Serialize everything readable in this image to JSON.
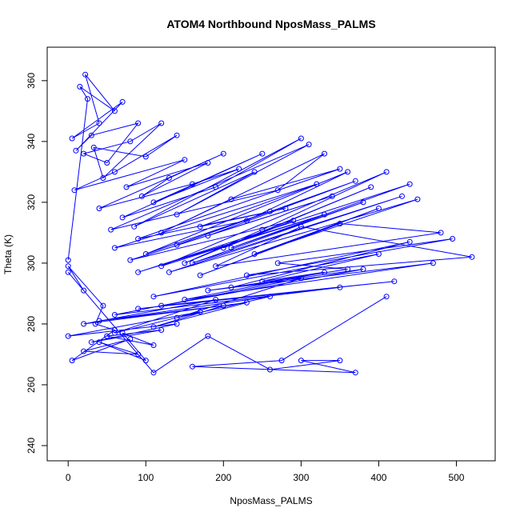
{
  "chart_data": {
    "type": "scatter",
    "title": "ATOM4 Northbound NposMass_PALMS",
    "xlabel": "NposMass_PALMS",
    "ylabel": "Theta (K)",
    "xlim": [
      -27,
      550
    ],
    "ylim": [
      235,
      371
    ],
    "xticks": [
      "0",
      "100",
      "200",
      "300",
      "400",
      "500"
    ],
    "yticks": [
      "240",
      "260",
      "280",
      "300",
      "320",
      "340",
      "360"
    ],
    "marker": "open-circle",
    "connected_lines": true,
    "grid": false,
    "colors": {
      "series": "#0000ff",
      "axes": "#000000"
    },
    "series": [
      {
        "x": [
          0,
          25,
          15,
          60,
          22,
          40,
          5,
          70,
          10,
          30,
          90,
          50,
          20,
          80,
          120,
          45,
          33,
          100,
          140,
          60,
          8,
          150,
          75,
          180,
          95,
          130,
          200,
          40,
          160,
          220,
          110,
          250,
          70,
          190,
          300,
          85,
          240,
          140,
          310,
          55,
          270,
          330,
          120,
          210,
          350,
          90,
          280,
          170,
          320,
          60,
          230,
          360,
          100,
          260,
          140,
          370,
          180,
          340,
          80,
          290,
          200,
          390,
          150,
          250,
          410,
          120,
          330,
          90,
          440,
          210,
          380,
          160,
          430,
          130,
          450,
          240,
          400,
          170,
          350,
          480,
          190,
          300,
          520,
          230,
          495,
          270,
          360,
          210,
          440,
          110,
          400,
          250,
          330,
          150,
          470,
          180,
          380,
          120,
          420,
          90,
          350,
          60,
          300,
          140,
          260,
          40,
          230,
          110,
          200,
          20,
          190,
          60,
          170,
          0,
          140,
          30,
          120,
          50,
          110,
          70,
          100,
          40,
          90,
          20,
          80,
          5,
          60,
          35,
          45,
          0,
          20,
          0,
          110,
          180,
          260,
          350,
          300,
          370,
          160,
          275,
          410
        ],
        "y": [
          301,
          354,
          358,
          350,
          362,
          346,
          341,
          353,
          337,
          342,
          346,
          333,
          336,
          340,
          346,
          328,
          338,
          335,
          342,
          330,
          324,
          334,
          325,
          333,
          322,
          328,
          336,
          318,
          326,
          331,
          320,
          336,
          315,
          325,
          341,
          312,
          330,
          316,
          339,
          311,
          324,
          336,
          310,
          321,
          331,
          308,
          318,
          312,
          326,
          305,
          314,
          330,
          303,
          317,
          306,
          327,
          309,
          322,
          301,
          314,
          305,
          325,
          300,
          311,
          330,
          299,
          316,
          297,
          326,
          305,
          320,
          300,
          322,
          297,
          321,
          303,
          318,
          296,
          313,
          310,
          299,
          312,
          302,
          296,
          308,
          300,
          298,
          292,
          307,
          289,
          303,
          294,
          297,
          288,
          300,
          291,
          298,
          286,
          294,
          285,
          292,
          283,
          295,
          282,
          289,
          281,
          287,
          279,
          286,
          280,
          288,
          277,
          284,
          276,
          280,
          274,
          278,
          276,
          273,
          277,
          268,
          274,
          270,
          271,
          275,
          268,
          278,
          280,
          286,
          299,
          291,
          297,
          264,
          276,
          265,
          268,
          268,
          264,
          266,
          268,
          289
        ]
      }
    ]
  }
}
